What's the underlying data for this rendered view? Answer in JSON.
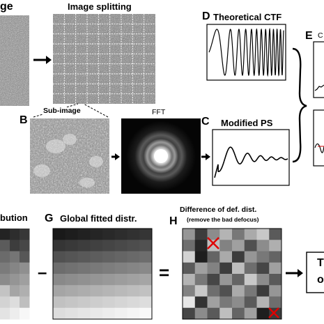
{
  "figure": {
    "panel_a_title_fragment": "ge",
    "image_splitting_title": "Image splitting",
    "panel_b_letter": "B",
    "sub_image_label": "Sub-image",
    "fft_label": "FFT",
    "panel_c_letter": "C",
    "modified_ps_title": "Modified PS",
    "panel_d_letter": "D",
    "theoretical_ctf_title": "Theoretical CTF",
    "panel_e_letter": "E",
    "panel_e_fragment": "C",
    "panel_f_fragment": "bution",
    "panel_g_letter": "G",
    "global_fitted_title": "Global fitted distr.",
    "panel_h_letter": "H",
    "difference_title": "Difference of def. dist.",
    "difference_subtitle": "(remove the bad defocus)",
    "minus_symbol": "–",
    "equals_symbol": "=",
    "final_box_line1": "T",
    "final_box_line2": "o"
  }
}
